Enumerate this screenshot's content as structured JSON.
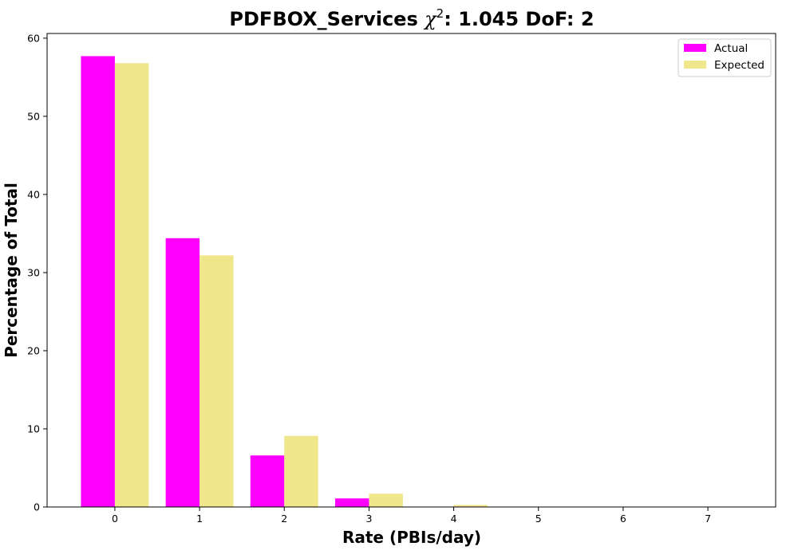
{
  "chart_data": {
    "type": "bar",
    "title_prefix": "PDFBOX_Services ",
    "title_chi_symbol": "χ",
    "title_chi_exponent": "2",
    "title_suffix": ": 1.045 DoF: 2",
    "xlabel": "Rate (PBIs/day)",
    "ylabel": "Percentage of Total",
    "categories": [
      "0",
      "1",
      "2",
      "3",
      "4",
      "5",
      "6",
      "7"
    ],
    "x": [
      0,
      1,
      2,
      3,
      4,
      5,
      6,
      7
    ],
    "xlim": [
      -0.8,
      7.8
    ],
    "ylim": [
      0,
      60.6
    ],
    "yticks": [
      0,
      10,
      20,
      30,
      40,
      50,
      60
    ],
    "series": [
      {
        "name": "Actual",
        "color": "#ff00ff",
        "values": [
          57.7,
          34.4,
          6.6,
          1.1,
          0.0,
          0.0,
          0.0,
          0.0
        ]
      },
      {
        "name": "Expected",
        "color": "#f0e68c",
        "values": [
          56.8,
          32.2,
          9.1,
          1.7,
          0.25,
          0.03,
          0.0,
          0.0
        ]
      }
    ],
    "legend_position": "top-right",
    "grid": false
  }
}
